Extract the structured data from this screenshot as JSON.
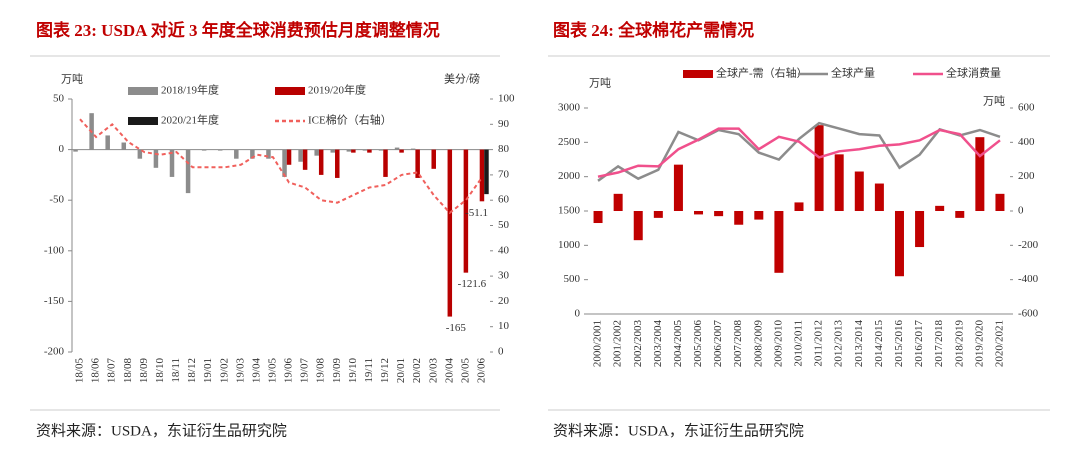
{
  "chart_data": [
    {
      "type": "combo",
      "title": "图表 23: USDA 对近 3 年度全球消费预估月度调整情况",
      "ylabel": "万吨",
      "y2label": "美分/磅",
      "categories": [
        "18/05",
        "18/06",
        "18/07",
        "18/08",
        "18/09",
        "18/10",
        "18/11",
        "18/12",
        "19/01",
        "19/02",
        "19/03",
        "19/04",
        "19/05",
        "19/06",
        "19/07",
        "19/08",
        "19/09",
        "19/10",
        "19/11",
        "19/12",
        "20/01",
        "20/02",
        "20/03",
        "20/04",
        "20/05",
        "20/06"
      ],
      "series": [
        {
          "name": "2018/19年度",
          "type": "bar",
          "color": "#8c8c8c",
          "values": [
            -2,
            36,
            14,
            7,
            -9,
            -18,
            -27,
            -43,
            -1,
            -1,
            -9,
            -9,
            -9,
            -27,
            -12,
            -6,
            -3,
            -2,
            -1,
            -1,
            2,
            1,
            0,
            null,
            null,
            null
          ]
        },
        {
          "name": "2019/20年度",
          "type": "bar",
          "color": "#b80000",
          "values": [
            null,
            null,
            null,
            null,
            null,
            null,
            null,
            null,
            null,
            null,
            null,
            null,
            null,
            -15,
            -20,
            -25,
            -28,
            -3,
            -3,
            -27,
            -3,
            -28,
            -19,
            -165,
            -121.6,
            -51.1
          ],
          "value_labels": [
            null,
            null,
            null,
            null,
            null,
            null,
            null,
            null,
            null,
            null,
            null,
            null,
            null,
            null,
            null,
            null,
            null,
            null,
            null,
            null,
            null,
            null,
            null,
            "-165",
            "-121.6",
            "-51.1"
          ]
        },
        {
          "name": "2020/21年度",
          "type": "bar",
          "color": "#1a1a1a",
          "values": [
            null,
            null,
            null,
            null,
            null,
            null,
            null,
            null,
            null,
            null,
            null,
            null,
            null,
            null,
            null,
            null,
            null,
            null,
            null,
            null,
            null,
            null,
            null,
            null,
            null,
            -44
          ]
        },
        {
          "name": "ICE棉价（右轴）",
          "type": "line",
          "axis": "y2",
          "dash": true,
          "color": "#f0605c",
          "values": [
            92,
            85,
            90,
            83,
            79,
            78,
            79,
            73,
            73,
            73,
            74,
            78,
            77,
            67,
            65,
            60,
            59,
            62,
            65,
            66,
            70,
            71,
            62,
            55,
            60,
            69
          ]
        }
      ],
      "ylim": [
        -200,
        50
      ],
      "yticks": [
        -200,
        -150,
        -100,
        -50,
        0,
        50
      ],
      "y2lim": [
        0,
        100
      ],
      "y2ticks": [
        0,
        10,
        20,
        30,
        40,
        50,
        60,
        70,
        80,
        90,
        100
      ],
      "grid": false,
      "legend_columns": 2,
      "source": "资料来源：USDA，东证衍生品研究院"
    },
    {
      "type": "combo",
      "title": "图表 24:  全球棉花产需情况",
      "ylabel": "万吨",
      "y2label": "万吨",
      "categories": [
        "2000/2001",
        "2001/2002",
        "2002/2003",
        "2003/2004",
        "2004/2005",
        "2005/2006",
        "2006/2007",
        "2007/2008",
        "2008/2009",
        "2009/2010",
        "2010/2011",
        "2011/2012",
        "2012/2013",
        "2013/2014",
        "2014/2015",
        "2015/2016",
        "2016/2017",
        "2017/2018",
        "2018/2019",
        "2019/2020",
        "2020/2021"
      ],
      "series": [
        {
          "name": "全球产-需（右轴）",
          "type": "bar",
          "axis": "y2",
          "color": "#c00000",
          "values": [
            -70,
            100,
            -170,
            -40,
            270,
            -20,
            -30,
            -80,
            -50,
            -360,
            50,
            500,
            330,
            230,
            160,
            -380,
            -210,
            30,
            -40,
            430,
            100
          ]
        },
        {
          "name": "全球产量",
          "type": "line",
          "color": "#8c8c8c",
          "values": [
            1940,
            2150,
            1970,
            2100,
            2650,
            2530,
            2680,
            2620,
            2350,
            2250,
            2550,
            2780,
            2700,
            2620,
            2600,
            2130,
            2320,
            2690,
            2600,
            2680,
            2580
          ]
        },
        {
          "name": "全球消费量",
          "type": "line",
          "color": "#f0508c",
          "values": [
            2000,
            2060,
            2160,
            2150,
            2400,
            2540,
            2700,
            2700,
            2400,
            2580,
            2510,
            2280,
            2370,
            2400,
            2450,
            2470,
            2530,
            2680,
            2620,
            2300,
            2530
          ]
        }
      ],
      "ylim": [
        0,
        3000
      ],
      "yticks": [
        0,
        500,
        1000,
        1500,
        2000,
        2500,
        3000
      ],
      "y2lim": [
        -600,
        600
      ],
      "y2ticks": [
        -600,
        -400,
        -200,
        0,
        200,
        400,
        600
      ],
      "grid": false,
      "legend_columns": 3,
      "source": "资料来源：USDA，东证衍生品研究院"
    }
  ]
}
